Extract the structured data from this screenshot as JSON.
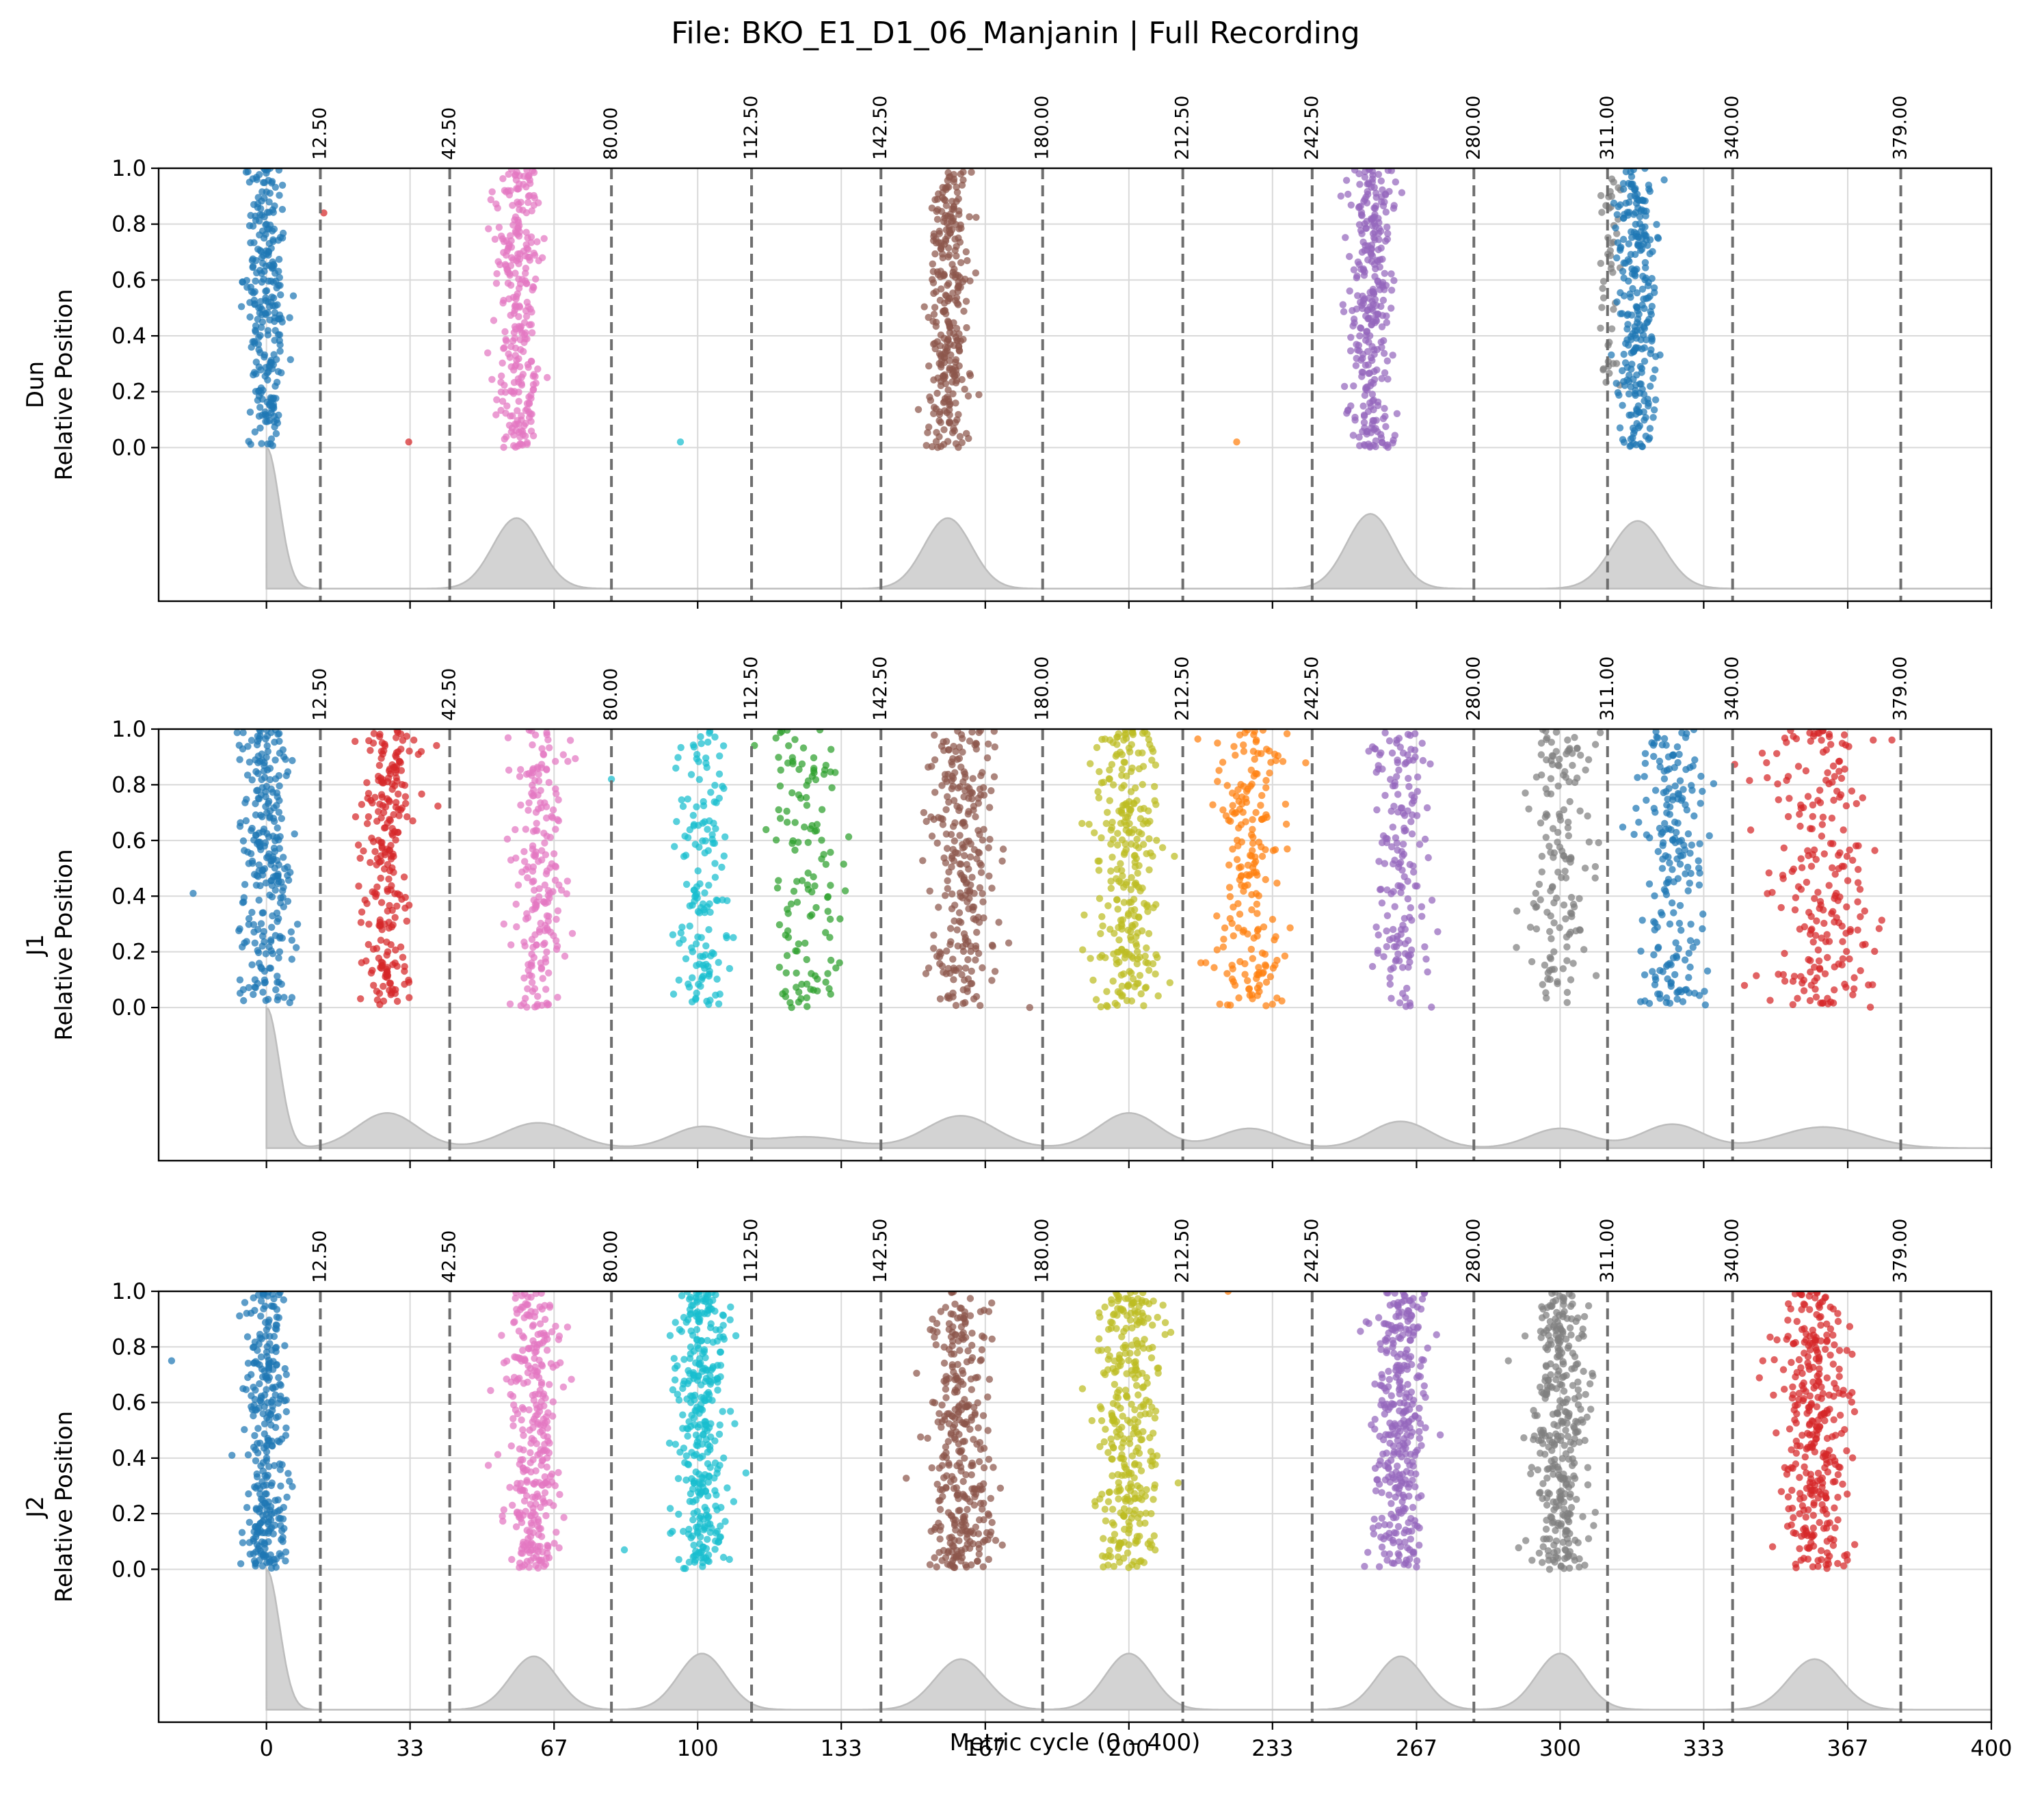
{
  "figure": {
    "title": "File: BKO_E1_D1_06_Manjanin | Full Recording",
    "xlabel": "Metric cycle (0 – 400)"
  },
  "chart_data": {
    "type": "scatter",
    "x_range": [
      -25,
      400
    ],
    "x_ticks": [
      0,
      33.3,
      66.7,
      100,
      133.3,
      166.7,
      200,
      233.3,
      266.7,
      300,
      333.3,
      366.7,
      400
    ],
    "x_tick_labels": [
      "0",
      "33",
      "67",
      "100",
      "133",
      "167",
      "200",
      "233",
      "267",
      "300",
      "333",
      "367",
      "400"
    ],
    "y_range": [
      -0.55,
      1.0
    ],
    "y_ticks": [
      0.0,
      0.2,
      0.4,
      0.6,
      0.8,
      1.0
    ],
    "y_tick_labels": [
      "0.0",
      "0.2",
      "0.4",
      "0.6",
      "0.8",
      "1.0"
    ],
    "grid": true,
    "boundaries": [
      12.5,
      42.5,
      80.0,
      112.5,
      142.5,
      180.0,
      212.5,
      242.5,
      280.0,
      311.0,
      340.0,
      379.0
    ],
    "boundary_labels": [
      "12.50",
      "42.50",
      "80.00",
      "112.50",
      "142.50",
      "180.00",
      "212.50",
      "242.50",
      "280.00",
      "311.00",
      "340.00",
      "379.00"
    ],
    "colors": {
      "blue": "#1f77b4",
      "orange": "#ff7f0e",
      "green": "#2ca02c",
      "red": "#d62728",
      "purple": "#9467bd",
      "brown": "#8c564b",
      "pink": "#e377c2",
      "gray": "#7f7f7f",
      "olive": "#bcbd22",
      "cyan": "#17becf",
      "kde": "#d3d3d3"
    },
    "panels": [
      {
        "name": "Dun",
        "ylabel_top": "Dun",
        "ylabel_bottom": "Relative Position",
        "clusters": [
          {
            "color": "blue",
            "center": 0,
            "spread": 4.5,
            "count": 260,
            "shape": "uniform"
          },
          {
            "color": "pink",
            "center": 58.5,
            "spread": 5,
            "count": 280,
            "shape": "uniform"
          },
          {
            "color": "brown",
            "center": 158,
            "spread": 4.8,
            "count": 290,
            "shape": "uniform"
          },
          {
            "color": "purple",
            "center": 256,
            "spread": 5,
            "count": 300,
            "shape": "uniform"
          },
          {
            "color": "gray",
            "center": 312,
            "spread": 2.5,
            "count": 45,
            "shape": "uniform",
            "ymin": 0.2
          },
          {
            "color": "blue",
            "center": 318,
            "spread": 5,
            "count": 260,
            "shape": "uniform"
          }
        ],
        "outliers": [
          {
            "color": "red",
            "x": 13.3,
            "y": 0.84
          },
          {
            "color": "red",
            "x": 33,
            "y": 0.02
          },
          {
            "color": "cyan",
            "x": 96,
            "y": 0.02
          },
          {
            "color": "orange",
            "x": 225,
            "y": 0.02
          }
        ],
        "kde_peaks": [
          {
            "center": 0,
            "height": 1.0,
            "width": 3,
            "half": true
          },
          {
            "center": 58,
            "height": 0.5,
            "width": 5.5
          },
          {
            "center": 158,
            "height": 0.5,
            "width": 5.5
          },
          {
            "center": 256,
            "height": 0.53,
            "width": 5.5
          },
          {
            "center": 318,
            "height": 0.48,
            "width": 6
          }
        ]
      },
      {
        "name": "J1",
        "ylabel_top": "J1",
        "ylabel_bottom": "Relative Position",
        "clusters": [
          {
            "color": "blue",
            "center": 0,
            "spread": 6,
            "count": 260,
            "shape": "uniform"
          },
          {
            "color": "red",
            "center": 28,
            "spread": 6,
            "count": 240,
            "shape": "uniform"
          },
          {
            "color": "pink",
            "center": 63,
            "spread": 6,
            "count": 200,
            "shape": "uniform"
          },
          {
            "color": "cyan",
            "center": 101,
            "spread": 6,
            "count": 150,
            "shape": "uniform"
          },
          {
            "color": "green",
            "center": 125,
            "spread": 8,
            "count": 130,
            "shape": "uniform"
          },
          {
            "color": "brown",
            "center": 161,
            "spread": 8,
            "count": 260,
            "shape": "uniform"
          },
          {
            "color": "olive",
            "center": 200,
            "spread": 8,
            "count": 280,
            "shape": "uniform"
          },
          {
            "color": "orange",
            "center": 228,
            "spread": 8,
            "count": 200,
            "shape": "uniform"
          },
          {
            "color": "purple",
            "center": 263,
            "spread": 6,
            "count": 170,
            "shape": "uniform"
          },
          {
            "color": "gray",
            "center": 300,
            "spread": 8,
            "count": 150,
            "shape": "uniform"
          },
          {
            "color": "blue",
            "center": 326,
            "spread": 8,
            "count": 200,
            "shape": "uniform"
          },
          {
            "color": "red",
            "center": 361,
            "spread": 12,
            "count": 220,
            "shape": "uniform"
          }
        ],
        "outliers": [
          {
            "color": "blue",
            "x": -17,
            "y": 0.41
          },
          {
            "color": "cyan",
            "x": 80,
            "y": 0.82
          },
          {
            "color": "brown",
            "x": 177,
            "y": 0.0
          }
        ],
        "kde_peaks": [
          {
            "center": 0,
            "height": 1.0,
            "width": 3,
            "half": true
          },
          {
            "center": 28,
            "height": 0.25,
            "width": 7
          },
          {
            "center": 63,
            "height": 0.18,
            "width": 8
          },
          {
            "center": 101,
            "height": 0.15,
            "width": 7
          },
          {
            "center": 125,
            "height": 0.08,
            "width": 10
          },
          {
            "center": 161,
            "height": 0.23,
            "width": 8
          },
          {
            "center": 200,
            "height": 0.25,
            "width": 7
          },
          {
            "center": 228,
            "height": 0.14,
            "width": 7
          },
          {
            "center": 263,
            "height": 0.19,
            "width": 7
          },
          {
            "center": 300,
            "height": 0.14,
            "width": 7
          },
          {
            "center": 326,
            "height": 0.17,
            "width": 7
          },
          {
            "center": 361,
            "height": 0.15,
            "width": 10
          }
        ]
      },
      {
        "name": "J2",
        "ylabel_top": "J2",
        "ylabel_bottom": "Relative Position",
        "clusters": [
          {
            "color": "blue",
            "center": 0,
            "spread": 5,
            "count": 300,
            "shape": "uniform"
          },
          {
            "color": "pink",
            "center": 62,
            "spread": 6,
            "count": 320,
            "shape": "uniform"
          },
          {
            "color": "cyan",
            "center": 101,
            "spread": 6,
            "count": 330,
            "shape": "uniform"
          },
          {
            "color": "brown",
            "center": 161,
            "spread": 7,
            "count": 330,
            "shape": "uniform"
          },
          {
            "color": "olive",
            "center": 200,
            "spread": 7,
            "count": 330,
            "shape": "uniform"
          },
          {
            "color": "purple",
            "center": 263,
            "spread": 6,
            "count": 330,
            "shape": "uniform"
          },
          {
            "color": "gray",
            "center": 300,
            "spread": 6,
            "count": 330,
            "shape": "uniform"
          },
          {
            "color": "red",
            "center": 359,
            "spread": 8,
            "count": 330,
            "shape": "uniform"
          }
        ],
        "outliers": [
          {
            "color": "blue",
            "x": -22,
            "y": 0.75
          },
          {
            "color": "blue",
            "x": -8,
            "y": 0.41
          },
          {
            "color": "cyan",
            "x": 83,
            "y": 0.07
          },
          {
            "color": "orange",
            "x": 223,
            "y": 1.0
          },
          {
            "color": "gray",
            "x": 288,
            "y": 0.75
          },
          {
            "color": "red",
            "x": 347,
            "y": 0.75
          }
        ],
        "kde_peaks": [
          {
            "center": 0,
            "height": 1.0,
            "width": 3,
            "half": true
          },
          {
            "center": 62,
            "height": 0.38,
            "width": 5.5
          },
          {
            "center": 101,
            "height": 0.4,
            "width": 5.5
          },
          {
            "center": 161,
            "height": 0.36,
            "width": 6
          },
          {
            "center": 200,
            "height": 0.4,
            "width": 5.5
          },
          {
            "center": 263,
            "height": 0.38,
            "width": 5.5
          },
          {
            "center": 300,
            "height": 0.4,
            "width": 5.5
          },
          {
            "center": 359,
            "height": 0.36,
            "width": 6
          }
        ]
      }
    ]
  }
}
